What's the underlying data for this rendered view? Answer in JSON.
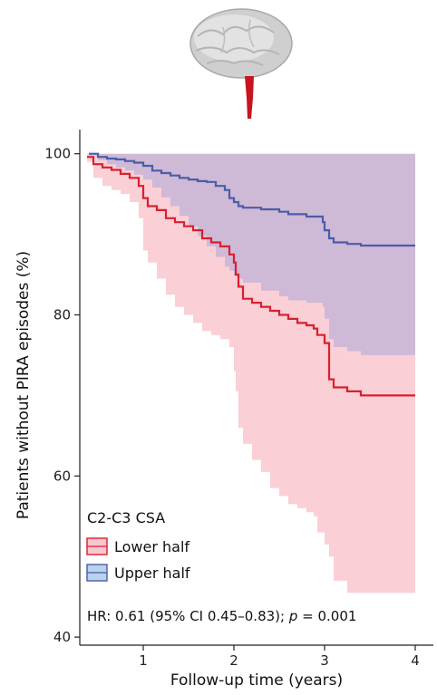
{
  "chart_data": {
    "type": "line",
    "title": "",
    "xlabel": "Follow-up time (years)",
    "ylabel": "Patients without PIRA episodes (%)",
    "xlim": [
      0.3,
      4.2
    ],
    "ylim": [
      39,
      103
    ],
    "xticks": [
      1,
      2,
      3,
      4
    ],
    "yticks": [
      40,
      60,
      80,
      100
    ],
    "grid": false,
    "legend": {
      "title": "C2-C3 CSA",
      "position": "bottom-left",
      "entries": [
        "Lower half",
        "Upper half"
      ]
    },
    "annotation": {
      "prefix": "HR: 0.61 (95% CI 0.45–0.83); ",
      "italic": "p",
      "suffix": " = 0.001"
    },
    "colors": {
      "lower_line": "#d9202f",
      "lower_band": "#f9c7cf",
      "upper_line": "#4b5ca8",
      "upper_band": "#a9a8d9"
    },
    "series": [
      {
        "name": "Lower half",
        "x": [
          0.38,
          0.45,
          0.55,
          0.65,
          0.75,
          0.85,
          0.95,
          1.0,
          1.05,
          1.15,
          1.25,
          1.35,
          1.45,
          1.55,
          1.65,
          1.75,
          1.85,
          1.95,
          2.0,
          2.02,
          2.05,
          2.1,
          2.2,
          2.3,
          2.4,
          2.5,
          2.6,
          2.7,
          2.8,
          2.88,
          2.92,
          3.0,
          3.05,
          3.1,
          3.25,
          3.4,
          4.0
        ],
        "y": [
          99.6,
          98.7,
          98.3,
          98.0,
          97.5,
          97.0,
          96.0,
          94.5,
          93.5,
          93.0,
          92.0,
          91.5,
          91.0,
          90.5,
          89.5,
          89.0,
          88.5,
          87.5,
          86.5,
          85.0,
          83.5,
          82.0,
          81.5,
          81.0,
          80.5,
          80.0,
          79.5,
          79.0,
          78.7,
          78.3,
          77.5,
          76.5,
          72.0,
          71.0,
          70.5,
          70.0,
          70.0
        ],
        "ci_upper": [
          100,
          100,
          100,
          100,
          100,
          100,
          100,
          100,
          100,
          100,
          100,
          100,
          100,
          100,
          100,
          100,
          100,
          100,
          100,
          100,
          100,
          100,
          100,
          100,
          100,
          100,
          100,
          100,
          100,
          100,
          100,
          100,
          100,
          100,
          100,
          100,
          100
        ],
        "ci_lower": [
          99.0,
          97.0,
          96.0,
          95.5,
          95.0,
          94.0,
          92.0,
          88.0,
          86.5,
          84.5,
          82.5,
          81.0,
          80.0,
          79.0,
          78.0,
          77.5,
          77.0,
          76.0,
          73.0,
          70.5,
          66.0,
          64.0,
          62.0,
          60.5,
          58.5,
          57.5,
          56.5,
          56.0,
          55.5,
          55.0,
          53.0,
          51.5,
          50.0,
          47.0,
          45.5,
          45.5,
          45.5
        ]
      },
      {
        "name": "Upper half",
        "x": [
          0.4,
          0.5,
          0.6,
          0.7,
          0.8,
          0.9,
          1.0,
          1.1,
          1.2,
          1.3,
          1.4,
          1.5,
          1.6,
          1.7,
          1.8,
          1.9,
          1.95,
          2.0,
          2.05,
          2.1,
          2.3,
          2.5,
          2.6,
          2.8,
          2.98,
          3.0,
          3.05,
          3.1,
          3.25,
          3.4,
          4.0
        ],
        "y": [
          100,
          99.6,
          99.4,
          99.3,
          99.1,
          98.9,
          98.5,
          97.9,
          97.6,
          97.3,
          97.0,
          96.8,
          96.6,
          96.5,
          96.0,
          95.5,
          94.5,
          94.0,
          93.5,
          93.3,
          93.1,
          92.8,
          92.5,
          92.2,
          91.5,
          90.5,
          89.5,
          89.0,
          88.8,
          88.6,
          88.6
        ],
        "ci_upper": [
          100,
          100,
          100,
          100,
          100,
          100,
          100,
          100,
          100,
          100,
          100,
          100,
          100,
          100,
          100,
          100,
          100,
          100,
          100,
          100,
          100,
          100,
          100,
          100,
          100,
          100,
          100,
          100,
          100,
          100,
          100
        ],
        "ci_lower": [
          99.8,
          99.2,
          98.7,
          98.3,
          97.9,
          97.4,
          96.8,
          95.8,
          94.6,
          93.5,
          92.3,
          91.0,
          89.8,
          88.5,
          87.2,
          86.0,
          85.5,
          84.8,
          84.5,
          84.0,
          83.0,
          82.3,
          81.8,
          81.5,
          81.0,
          79.5,
          77.0,
          76.0,
          75.5,
          75.0,
          75.0
        ]
      }
    ]
  }
}
